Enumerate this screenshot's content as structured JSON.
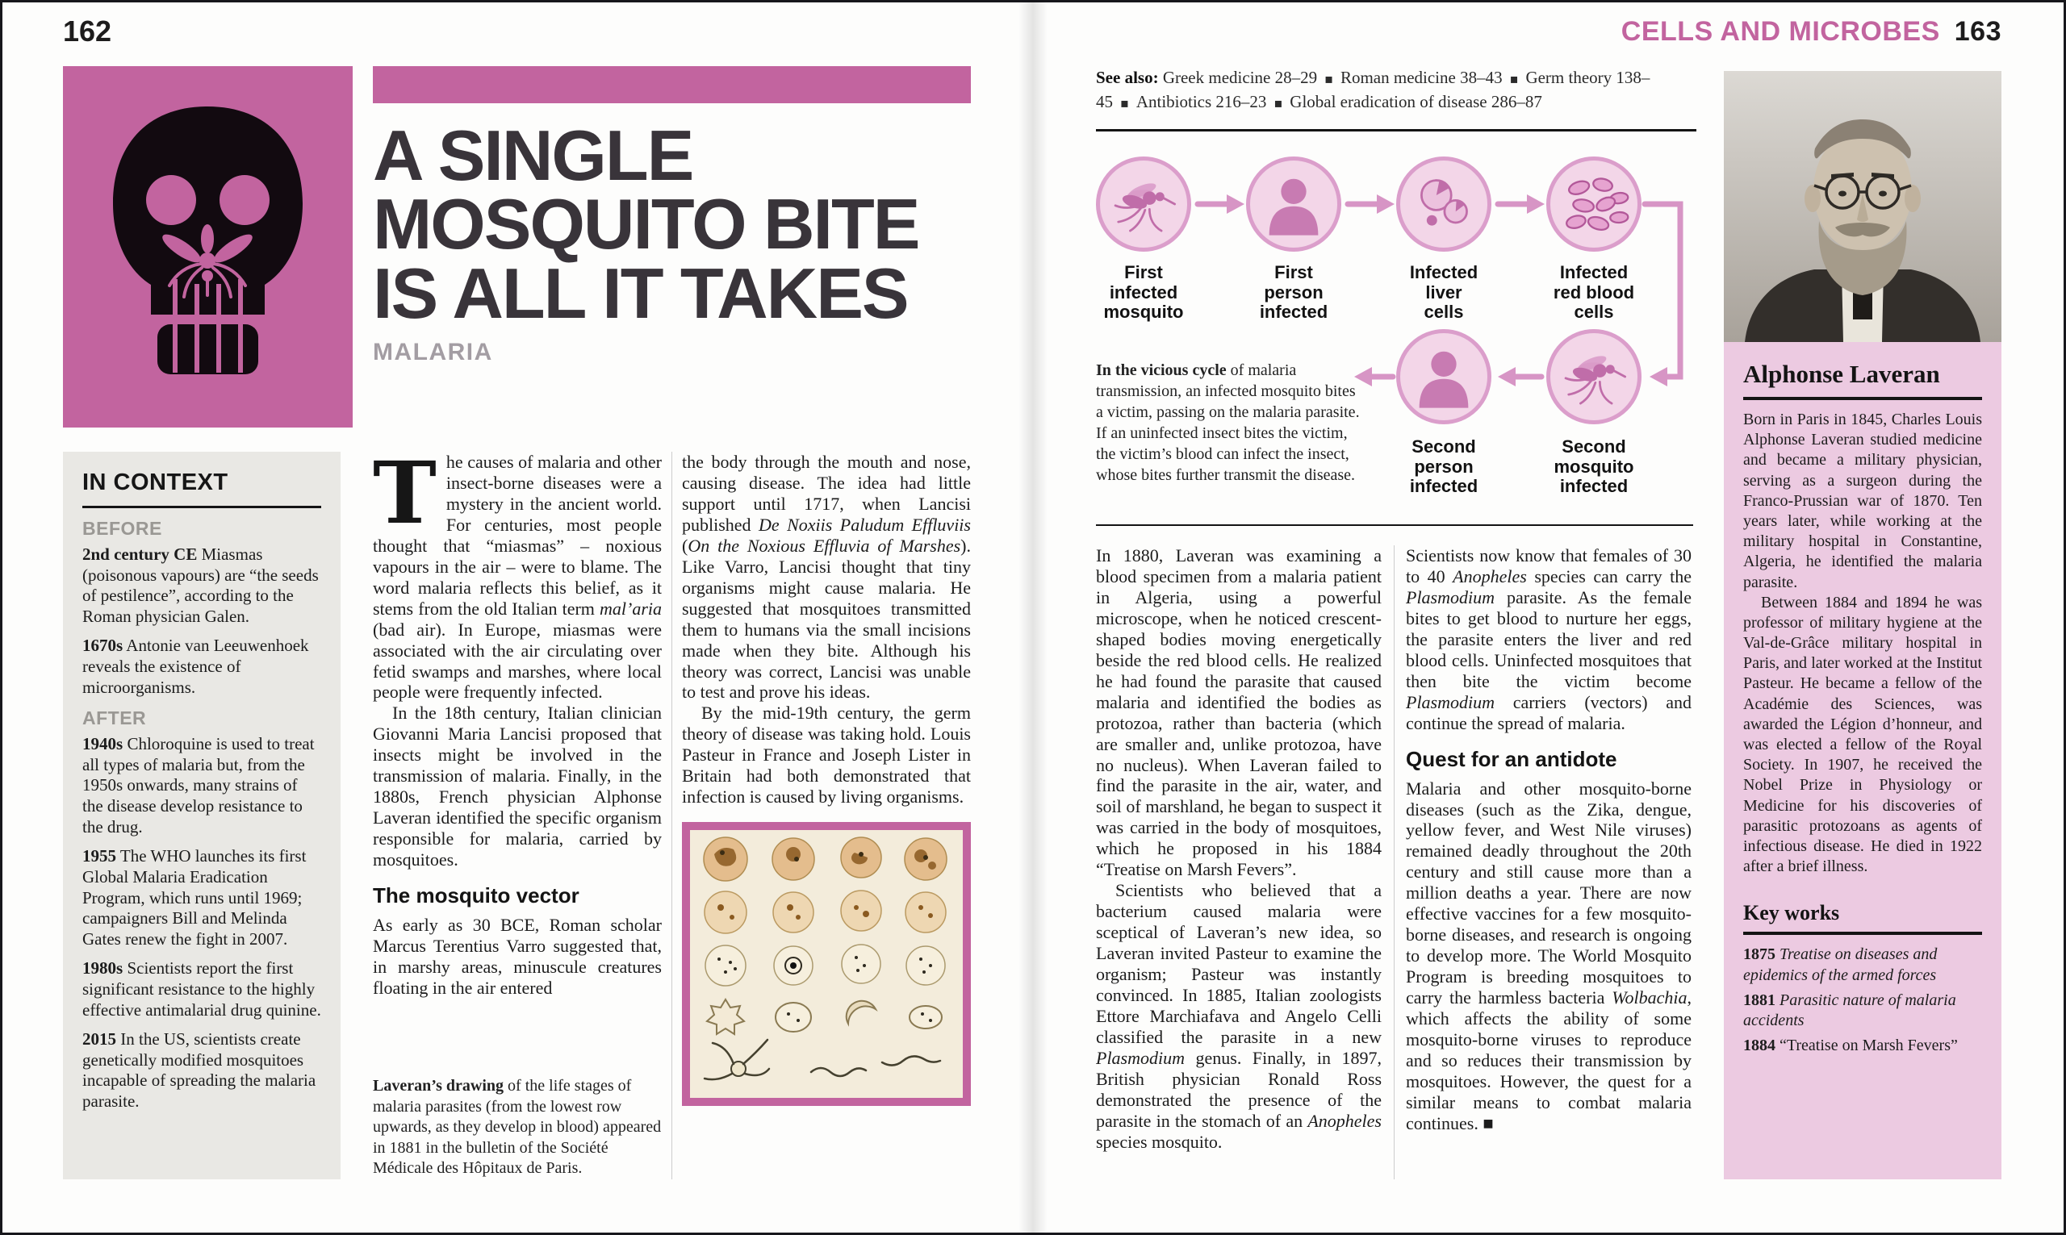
{
  "colors": {
    "accent": "#c2649f",
    "title_ink": "#39343a",
    "sidebar_pink": "#eccae1",
    "context_gray": "#e9e8e4",
    "diagram_fill": "#f3d6e8",
    "diagram_ring": "#db9ecb",
    "diagram_icon": "#c06da9",
    "arrow_pink": "#d795c5"
  },
  "left_page": {
    "page_number": "162",
    "title_lines": [
      "A SINGLE",
      "MOSQUITO BITE",
      "IS ALL IT TAKES"
    ],
    "subtitle": "MALARIA",
    "in_context": {
      "heading": "IN CONTEXT",
      "before_label": "BEFORE",
      "after_label": "AFTER",
      "before": [
        {
          "year": "2nd century CE",
          "text": "Miasmas (poisonous vapours) are “the seeds of pestilence”, according to the Roman physician Galen."
        },
        {
          "year": "1670s",
          "text": "Antonie van Leeuwenhoek reveals the existence of microorganisms."
        }
      ],
      "after": [
        {
          "year": "1940s",
          "text": "Chloroquine is used to treat all types of malaria but, from the 1950s onwards, many strains of the disease develop resistance to the drug."
        },
        {
          "year": "1955",
          "text": "The WHO launches its first Global Malaria Eradication Program, which runs until 1969; campaigners Bill and Melinda Gates renew the fight in 2007."
        },
        {
          "year": "1980s",
          "text": "Scientists report the first significant resistance to the highly effective antimalarial drug quinine."
        },
        {
          "year": "2015",
          "text": "In the US, scientists create genetically modified mosquitoes incapable of spreading the malaria parasite."
        }
      ]
    },
    "body": {
      "dropcap": "T",
      "para1": "he causes of malaria and other insect-borne diseases were a mystery in the ancient world. For centuries, most people thought that “miasmas” – noxious vapours in the air – were to blame. The word malaria reflects this belief, as it stems from the old Italian term *mal’aria* (bad air). In Europe, miasmas were associated with the air circulating over fetid swamps and marshes, where local people were frequently infected.",
      "para2": "In the 18th century, Italian clinician Giovanni Maria Lancisi proposed that insects might be involved in the transmission of malaria. Finally, in the 1880s, French physician Alphonse Laveran identified the specific organism responsible for malaria, carried by mosquitoes.",
      "subhead": "The mosquito vector",
      "para3": "As early as 30 BCE, Roman scholar Marcus Terentius Varro suggested that, in marshy areas, minuscule creatures floating in the air entered",
      "para4": "the body through the mouth and nose, causing disease. The idea had little support until 1717, when Lancisi published *De Noxiis Paludum Effluviis* (*On the Noxious Effluvia of Marshes*). Like Varro, Lancisi thought that tiny organisms might cause malaria. He suggested that mosquitoes transmitted them to humans via the small incisions made when they bite. Although his theory was correct, Lancisi was unable to test and prove his ideas.",
      "para5": "By the mid-19th century, the germ theory of disease was taking hold. Louis Pasteur in France and Joseph Lister in Britain had both demonstrated that infection is caused by living organisms."
    },
    "caption": {
      "lead": "Laveran’s drawing",
      "text": " of the life stages of malaria parasites (from the lowest row upwards, as they develop in blood) appeared in 1881 in the bulletin of the Société Médicale des Hôpitaux de Paris."
    }
  },
  "right_page": {
    "page_number": "163",
    "section_title": "CELLS AND MICROBES",
    "see_also": {
      "label": "See also:",
      "items": [
        "Greek medicine 28–29",
        "Roman medicine 38–43",
        "Germ theory 138–45",
        "Antibiotics 216–23",
        "Global eradication of disease 286–87"
      ]
    },
    "diagram": {
      "nodes": [
        {
          "icon": "mosquito",
          "label": "First\ninfected\nmosquito"
        },
        {
          "icon": "person",
          "label": "First\nperson\ninfected"
        },
        {
          "icon": "liver-cells",
          "label": "Infected\nliver\ncells"
        },
        {
          "icon": "red-blood-cells",
          "label": "Infected\nred blood\ncells"
        },
        {
          "icon": "person",
          "label": "Second\nperson\ninfected"
        },
        {
          "icon": "mosquito",
          "label": "Second\nmosquito\ninfected"
        }
      ],
      "caption": {
        "lead": "In the vicious cycle",
        "text": " of malaria transmission, an infected mosquito bites a victim, passing on the malaria parasite. If an uninfected insect bites the victim, the victim’s blood can infect the insect, whose bites further transmit the disease."
      }
    },
    "body": {
      "para1": "In 1880, Laveran was examining a blood specimen from a malaria patient in Algeria, using a powerful microscope, when he noticed crescent-shaped bodies moving energetically beside the red blood cells. He realized he had found the parasite that caused malaria and identified the bodies as protozoa, rather than bacteria (which are smaller and, unlike protozoa, have no nucleus). When Laveran failed to find the parasite in the air, water, and soil of marshland, he began to suspect it was carried in the body of mosquitoes, which he proposed in his 1884 “Treatise on Marsh Fevers”.",
      "para2": "Scientists who believed that a bacterium caused malaria were sceptical of Laveran’s new idea, so Laveran invited Pasteur to examine the organism; Pasteur was instantly convinced. In 1885, Italian zoologists Ettore Marchiafava and Angelo Celli classified the parasite in a new *Plasmodium* genus. Finally, in 1897, British physician Ronald Ross demonstrated the presence of the parasite in the stomach of an *Anopheles* species mosquito.",
      "para3": "Scientists now know that females of 30 to 40 *Anopheles* species can carry the *Plasmodium* parasite. As the female bites to get blood to nurture her eggs, the parasite enters the liver and red blood cells. Uninfected mosquitoes that then bite the victim become *Plasmodium* carriers (vectors) and continue the spread of malaria.",
      "subhead": "Quest for an antidote",
      "para4": "Malaria and other mosquito-borne diseases (such as the Zika, dengue, yellow fever, and West Nile viruses) remained deadly throughout the 20th century and still cause more than a million deaths a year. There are now effective vaccines for a few mosquito-borne diseases, and research is ongoing to develop more. The World Mosquito Program is breeding mosquitoes to carry the harmless bacteria *Wolbachia*, which affects the ability of some mosquito-borne viruses to reproduce and so reduces their transmission by mosquitoes. However, the quest for a similar means to combat malaria continues. ■"
    },
    "biography": {
      "name": "Alphonse Laveran",
      "para1": "Born in Paris in 1845, Charles Louis Alphonse Laveran studied medicine and became a military physician, serving as a surgeon during the Franco-Prussian war of 1870. Ten years later, while working at the military hospital in Constantine, Algeria, he identified the malaria parasite.",
      "para2": "Between 1884 and 1894 he was professor of military hygiene at the Val-de-Grâce military hospital in Paris, and later worked at the Institut Pasteur. He became a fellow of the Académie des Sciences, was awarded the Légion d’honneur, and was elected a fellow of the Royal Society. In 1907, he received the Nobel Prize in Physiology or Medicine for his discoveries of parasitic protozoans as agents of infectious disease. He died in 1922 after a brief illness.",
      "key_works_heading": "Key works",
      "key_works": [
        {
          "year": "1875",
          "title": "Treatise on diseases and epidemics of the armed forces"
        },
        {
          "year": "1881",
          "title": "Parasitic nature of malaria accidents"
        },
        {
          "year": "1884",
          "title": "“Treatise on Marsh Fevers”"
        }
      ]
    }
  }
}
